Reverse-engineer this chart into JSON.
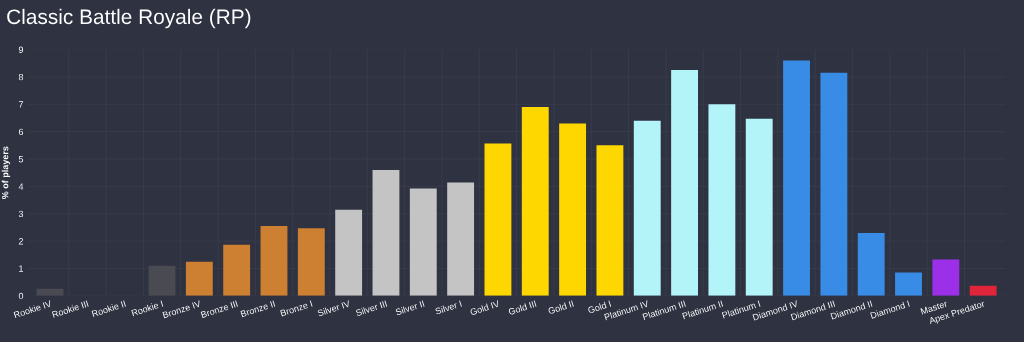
{
  "chart_data": {
    "type": "bar",
    "title": "Classic Battle Royale (RP)",
    "ylabel": "% of players",
    "categories": [
      "Rookie IV",
      "Rookie III",
      "Rookie II",
      "Rookie I",
      "Bronze IV",
      "Bronze III",
      "Bronze II",
      "Bronze I",
      "Silver IV",
      "Silver III",
      "Silver II",
      "Silver I",
      "Gold IV",
      "Gold III",
      "Gold II",
      "Gold I",
      "Platinum IV",
      "Platinum III",
      "Platinum II",
      "Platinum I",
      "Diamond IV",
      "Diamond III",
      "Diamond II",
      "Diamond I",
      "Master",
      "Apex Predator"
    ],
    "values": [
      0.26,
      0,
      0,
      1.1,
      1.25,
      1.87,
      2.55,
      2.47,
      3.15,
      4.6,
      3.92,
      4.14,
      5.57,
      6.9,
      6.3,
      5.5,
      6.4,
      8.25,
      7.0,
      6.47,
      8.6,
      8.15,
      2.3,
      0.85,
      1.33,
      0.37
    ],
    "colors": [
      "#4a4b52",
      "#4a4b52",
      "#4a4b52",
      "#4a4b52",
      "#cd8032",
      "#cd8032",
      "#cd8032",
      "#cd8032",
      "#c4c4c4",
      "#c4c4c4",
      "#c4c4c4",
      "#c4c4c4",
      "#ffd700",
      "#ffd700",
      "#ffd700",
      "#ffd700",
      "#b3f4f9",
      "#b3f4f9",
      "#b3f4f9",
      "#b3f4f9",
      "#388ce6",
      "#388ce6",
      "#388ce6",
      "#388ce6",
      "#9b30e8",
      "#e0243a"
    ],
    "ylim": [
      0,
      9
    ],
    "yticks": [
      0,
      1,
      2,
      3,
      4,
      5,
      6,
      7,
      8,
      9
    ],
    "grid": true
  }
}
